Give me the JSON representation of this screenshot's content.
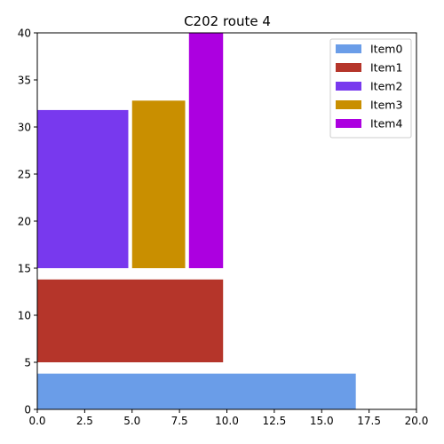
{
  "chart_data": {
    "type": "bar",
    "title": "C202 route 4",
    "xlim": [
      0,
      20
    ],
    "ylim": [
      0,
      40
    ],
    "x_ticks": [
      "0.0",
      "2.5",
      "5.0",
      "7.5",
      "10.0",
      "12.5",
      "15.0",
      "17.5",
      "20.0"
    ],
    "y_ticks": [
      "0",
      "5",
      "10",
      "15",
      "20",
      "25",
      "30",
      "35",
      "40"
    ],
    "grid": false,
    "legend_position": "top-right",
    "items": [
      {
        "name": "Item0",
        "color": "#6a9de8",
        "x0": 0,
        "x1": 16.8,
        "y0": 0,
        "y1": 3.8
      },
      {
        "name": "Item1",
        "color": "#b5352a",
        "x0": 0,
        "x1": 9.8,
        "y0": 5,
        "y1": 13.8
      },
      {
        "name": "Item2",
        "color": "#7839ee",
        "x0": 0,
        "x1": 4.8,
        "y0": 15,
        "y1": 31.8
      },
      {
        "name": "Item3",
        "color": "#c98f00",
        "x0": 5,
        "x1": 7.8,
        "y0": 15,
        "y1": 32.8
      },
      {
        "name": "Item4",
        "color": "#ac00e0",
        "x0": 8,
        "x1": 9.8,
        "y0": 15,
        "y1": 40
      }
    ]
  }
}
